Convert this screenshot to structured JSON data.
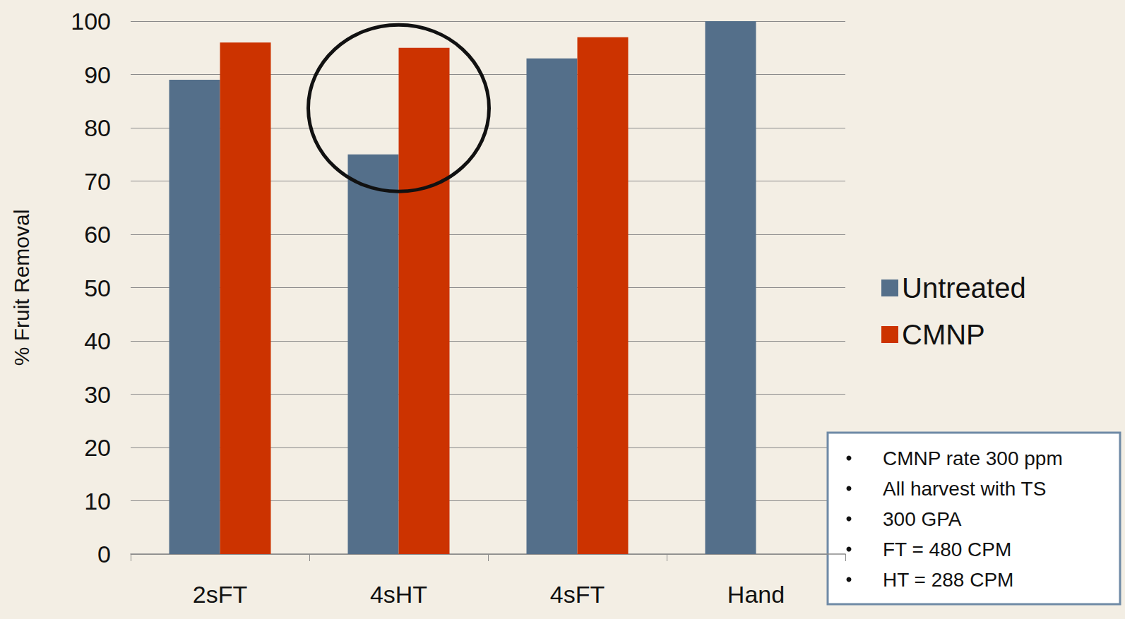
{
  "chart_data": {
    "type": "bar",
    "categories": [
      "2sFT",
      "4sHT",
      "4sFT",
      "Hand"
    ],
    "series": [
      {
        "name": "Untreated",
        "color": "#546f8a",
        "values": [
          89,
          75,
          93,
          100
        ]
      },
      {
        "name": "CMNP",
        "color": "#cc3300",
        "values": [
          96,
          95,
          97,
          null
        ]
      }
    ],
    "ylabel": "% Fruit Removal",
    "ylim": [
      0,
      100
    ],
    "yticks": [
      0,
      10,
      20,
      30,
      40,
      50,
      60,
      70,
      80,
      90,
      100
    ],
    "grid": true,
    "legend": "right",
    "annotations": [
      "CMNP rate 300 ppm",
      "All harvest with TS",
      "300 GPA",
      "FT = 480 CPM",
      "HT = 288 CPM"
    ]
  }
}
